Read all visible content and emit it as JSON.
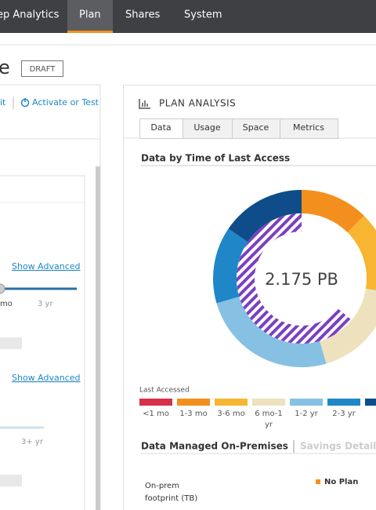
{
  "nav": {
    "tabs": [
      "ep Analytics",
      "Plan",
      "Shares",
      "System"
    ],
    "active": 1
  },
  "header": {
    "title": "e",
    "badge": "DRAFT"
  },
  "left_panel": {
    "toolbar": [
      "it",
      "Activate or Test"
    ],
    "show_advanced": [
      "Show Advanced",
      "Show Advanced"
    ],
    "slider_labels": [
      "mo",
      "3 yr"
    ],
    "slider2_label": "3+ yr"
  },
  "analysis": {
    "title": "PLAN ANALYSIS",
    "tabs": [
      "Data",
      "Usage",
      "Space",
      "Metrics"
    ],
    "active_tab": 0,
    "donut": {
      "title": "Data by Time of Last Access",
      "center": "2.175 PB",
      "legend_title": "Last Accessed",
      "categories": [
        "<1 mo",
        "1-3 mo",
        "3-6 mo",
        "6 mo-1 yr",
        "1-2 yr",
        "2-3 yr",
        ">"
      ],
      "colors": [
        "#d6304a",
        "#f3901d",
        "#f8b531",
        "#ede2bd",
        "#86c1e4",
        "#1f87c7",
        "#0f4d8a"
      ],
      "values": [
        0,
        12.5,
        15,
        18,
        25,
        14,
        15.5
      ],
      "hatched": 64
    },
    "section": {
      "title": "Data Managed On-Premises",
      "link": "Savings Details",
      "row_label": "On-prem footprint (TB)",
      "legend": "No Plan"
    }
  }
}
